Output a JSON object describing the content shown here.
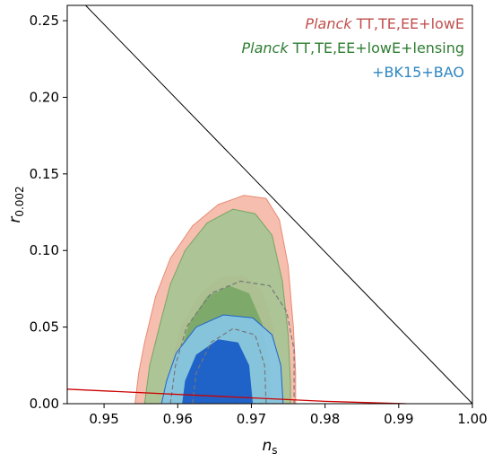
{
  "chart_data": {
    "type": "contour",
    "xlabel": "n",
    "xlabel_sub": "s",
    "ylabel": "r",
    "ylabel_sub": "0.002",
    "xlim": [
      0.945,
      1.0
    ],
    "ylim": [
      0.0,
      0.26
    ],
    "xticks": [
      0.95,
      0.96,
      0.97,
      0.98,
      0.99,
      1.0
    ],
    "xtick_labels": [
      "0.95",
      "0.96",
      "0.97",
      "0.98",
      "0.99",
      "1.00"
    ],
    "yticks": [
      0.0,
      0.05,
      0.1,
      0.15,
      0.2,
      0.25
    ],
    "ytick_labels": [
      "0.00",
      "0.05",
      "0.10",
      "0.15",
      "0.20",
      "0.25"
    ],
    "legend_position": "top-right",
    "legend": [
      {
        "italic": "Planck",
        "text": " TT,TE,EE+lowE",
        "color": "#c0504d"
      },
      {
        "italic": "Planck",
        "text": " TT,TE,EE+lowE+lensing",
        "color": "#2e7d32"
      },
      {
        "italic": "",
        "text": "+BK15+BAO",
        "color": "#2e86c1"
      }
    ],
    "series": [
      {
        "name": "Planck TT,TE,EE+lowE",
        "color_outer": "#f5b7a6",
        "color_inner": "#e98b72",
        "contour_95": [
          [
            0.9542,
            0.0
          ],
          [
            0.9547,
            0.02
          ],
          [
            0.9555,
            0.04
          ],
          [
            0.957,
            0.07
          ],
          [
            0.959,
            0.095
          ],
          [
            0.962,
            0.116
          ],
          [
            0.9655,
            0.13
          ],
          [
            0.969,
            0.136
          ],
          [
            0.972,
            0.134
          ],
          [
            0.9738,
            0.12
          ],
          [
            0.975,
            0.09
          ],
          [
            0.9757,
            0.05
          ],
          [
            0.976,
            0.02
          ],
          [
            0.976,
            0.0
          ]
        ],
        "contour_68": [
          [
            0.9582,
            0.0
          ],
          [
            0.959,
            0.025
          ],
          [
            0.9605,
            0.052
          ],
          [
            0.963,
            0.072
          ],
          [
            0.966,
            0.083
          ],
          [
            0.969,
            0.084
          ],
          [
            0.9715,
            0.074
          ],
          [
            0.973,
            0.05
          ],
          [
            0.9737,
            0.02
          ],
          [
            0.9738,
            0.0
          ]
        ]
      },
      {
        "name": "Planck TT,TE,EE+lowE+lensing",
        "color_outer": "#a5c594",
        "color_inner": "#74a663",
        "contour_95": [
          [
            0.9555,
            0.0
          ],
          [
            0.9562,
            0.025
          ],
          [
            0.9575,
            0.05
          ],
          [
            0.959,
            0.078
          ],
          [
            0.961,
            0.1
          ],
          [
            0.964,
            0.118
          ],
          [
            0.9675,
            0.127
          ],
          [
            0.9705,
            0.124
          ],
          [
            0.9728,
            0.11
          ],
          [
            0.9742,
            0.08
          ],
          [
            0.975,
            0.045
          ],
          [
            0.9753,
            0.015
          ],
          [
            0.9753,
            0.0
          ]
        ],
        "contour_68": [
          [
            0.9592,
            0.0
          ],
          [
            0.96,
            0.028
          ],
          [
            0.9615,
            0.052
          ],
          [
            0.964,
            0.07
          ],
          [
            0.967,
            0.077
          ],
          [
            0.9697,
            0.072
          ],
          [
            0.9715,
            0.052
          ],
          [
            0.9725,
            0.025
          ],
          [
            0.9728,
            0.0
          ]
        ]
      },
      {
        "name": "+BK15+BAO",
        "color_outer": "#87c5e3",
        "color_inner": "#1f62c8",
        "contour_95": [
          [
            0.9578,
            0.0
          ],
          [
            0.9585,
            0.015
          ],
          [
            0.9598,
            0.033
          ],
          [
            0.9625,
            0.05
          ],
          [
            0.9662,
            0.058
          ],
          [
            0.9702,
            0.056
          ],
          [
            0.9728,
            0.045
          ],
          [
            0.974,
            0.025
          ],
          [
            0.9743,
            0.0
          ]
        ],
        "contour_68": [
          [
            0.9606,
            0.0
          ],
          [
            0.961,
            0.015
          ],
          [
            0.9625,
            0.032
          ],
          [
            0.9655,
            0.042
          ],
          [
            0.9682,
            0.04
          ],
          [
            0.9697,
            0.025
          ],
          [
            0.9702,
            0.0
          ]
        ]
      }
    ],
    "dashed_contours": [
      [
        [
          0.959,
          0.0
        ],
        [
          0.9597,
          0.025
        ],
        [
          0.9612,
          0.05
        ],
        [
          0.9645,
          0.072
        ],
        [
          0.9685,
          0.08
        ],
        [
          0.9725,
          0.077
        ],
        [
          0.9748,
          0.06
        ],
        [
          0.9758,
          0.035
        ],
        [
          0.9758,
          0.0
        ]
      ],
      [
        [
          0.962,
          0.0
        ],
        [
          0.9625,
          0.02
        ],
        [
          0.9645,
          0.04
        ],
        [
          0.9675,
          0.049
        ],
        [
          0.9705,
          0.045
        ],
        [
          0.9718,
          0.025
        ],
        [
          0.972,
          0.0
        ]
      ]
    ],
    "line_black": [
      [
        0.9475,
        0.26
      ],
      [
        1.0,
        0.0
      ]
    ],
    "line_red": [
      [
        0.945,
        0.0095
      ],
      [
        0.98,
        0.0015
      ],
      [
        0.991,
        0.0
      ]
    ]
  }
}
